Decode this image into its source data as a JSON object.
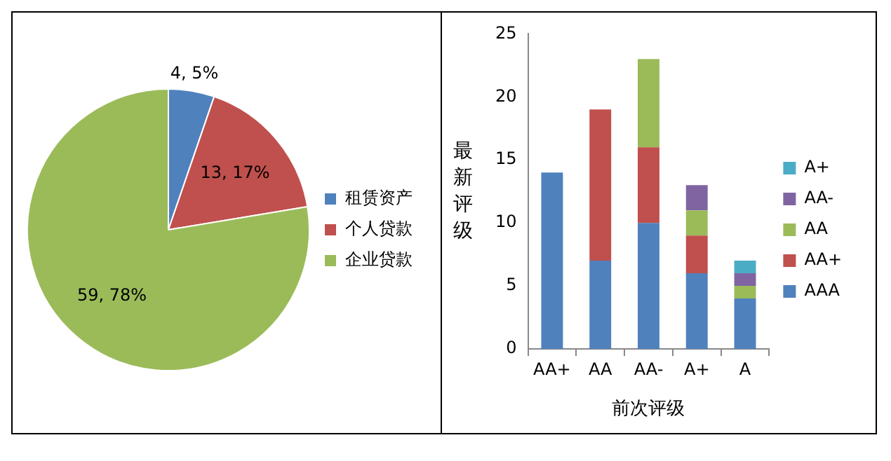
{
  "chart_data": [
    {
      "type": "pie",
      "categories": [
        "租赁资产",
        "个人贷款",
        "企业贷款"
      ],
      "values": [
        4,
        13,
        59
      ],
      "colors": [
        "#4f81bd",
        "#c0504d",
        "#9bbb59"
      ],
      "value_labels": [
        "4, 5%",
        "13, 17%",
        "59, 78%"
      ],
      "legend": "right"
    },
    {
      "type": "bar",
      "stacked": true,
      "xlabel": "前次评级",
      "ylabel": "最新评级",
      "categories": [
        "AA+",
        "AA",
        "AA-",
        "A+",
        "A"
      ],
      "ylim": [
        0,
        25
      ],
      "yticks": [
        0,
        5,
        10,
        15,
        20,
        25
      ],
      "grid": false,
      "legend": "right",
      "series": [
        {
          "name": "AAA",
          "color": "#4f81bd",
          "values": [
            14,
            7,
            10,
            6,
            4
          ]
        },
        {
          "name": "AA+",
          "color": "#c0504d",
          "values": [
            null,
            12,
            6,
            3,
            null
          ]
        },
        {
          "name": "AA",
          "color": "#9bbb59",
          "values": [
            null,
            null,
            7,
            2,
            1
          ]
        },
        {
          "name": "AA-",
          "color": "#8064a2",
          "values": [
            null,
            null,
            null,
            2,
            1
          ]
        },
        {
          "name": "A+",
          "color": "#4bacc6",
          "values": [
            null,
            null,
            null,
            null,
            1
          ]
        }
      ]
    }
  ]
}
